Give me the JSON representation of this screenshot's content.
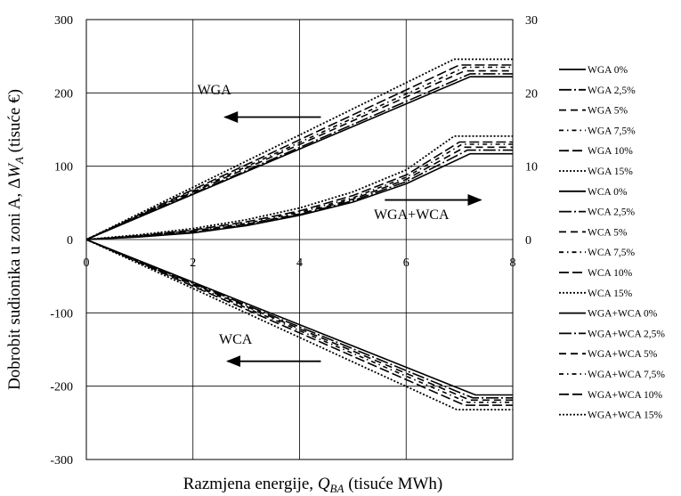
{
  "chart_data": {
    "type": "line",
    "title": "",
    "xlabel": "Razmjena energije, Q_BA (tisuće MWh)",
    "xlabel_parts": {
      "pre": "Razmjena energije, ",
      "sym": "Q",
      "sub": "BA",
      "post": " (tisuće MWh)"
    },
    "ylabel": "Dobrobit sudionika u zoni A, ΔW_A (tisuće €)",
    "ylabel_parts": {
      "pre": "Dobrobit sudionika u zoni A, Δ",
      "sym": "W",
      "sub": "A",
      "post": " (tisuće €)"
    },
    "xlim": [
      0,
      8
    ],
    "ylim": [
      -300,
      300
    ],
    "y2lim": [
      0,
      30
    ],
    "x_ticks": [
      "0",
      "2",
      "4",
      "6",
      "8"
    ],
    "y_ticks": [
      "300",
      "200",
      "100",
      "0",
      "-100",
      "-200",
      "-300"
    ],
    "y2_ticks": [
      "30",
      "20",
      "10",
      "0"
    ],
    "grid": true,
    "legend_position": "right",
    "annotations": [
      {
        "text": "WGA",
        "x": 2.4,
        "y": 198,
        "arrow": "left",
        "arrow_from": 4.4,
        "arrow_to": 2.6,
        "arrow_y": 167
      },
      {
        "text": "WGA+WCA",
        "x": 6.1,
        "y": 28,
        "arrow": "right",
        "arrow_from": 5.6,
        "arrow_to": 7.4,
        "arrow_y": 54
      },
      {
        "text": "WCA",
        "x": 2.8,
        "y": -142,
        "arrow": "left",
        "arrow_from": 4.4,
        "arrow_to": 2.65,
        "arrow_y": -166
      }
    ],
    "series": [
      {
        "name": "WGA 0%",
        "style": "solid",
        "axis": "left",
        "x": [
          0,
          7.2,
          8
        ],
        "y": [
          0,
          222,
          222
        ]
      },
      {
        "name": "WGA 2,5%",
        "style": "longdashdot",
        "axis": "left",
        "x": [
          0,
          7.2,
          8
        ],
        "y": [
          0,
          226,
          226
        ]
      },
      {
        "name": "WGA 5%",
        "style": "dash",
        "axis": "left",
        "x": [
          0,
          7.1,
          8
        ],
        "y": [
          0,
          230,
          230
        ]
      },
      {
        "name": "WGA 7,5%",
        "style": "dashdot",
        "axis": "left",
        "x": [
          0,
          7.1,
          8
        ],
        "y": [
          0,
          235,
          235
        ]
      },
      {
        "name": "WGA 10%",
        "style": "longdash",
        "axis": "left",
        "x": [
          0,
          7.0,
          8
        ],
        "y": [
          0,
          238,
          238
        ]
      },
      {
        "name": "WGA 15%",
        "style": "dot",
        "axis": "left",
        "x": [
          0,
          6.9,
          8
        ],
        "y": [
          0,
          246,
          246
        ]
      },
      {
        "name": "WCA 0%",
        "style": "solid",
        "axis": "left",
        "x": [
          0,
          7.3,
          8
        ],
        "y": [
          0,
          -212,
          -212
        ]
      },
      {
        "name": "WCA 2,5%",
        "style": "longdashdot",
        "axis": "left",
        "x": [
          0,
          7.25,
          8
        ],
        "y": [
          0,
          -216,
          -216
        ]
      },
      {
        "name": "WCA 5%",
        "style": "dash",
        "axis": "left",
        "x": [
          0,
          7.2,
          8
        ],
        "y": [
          0,
          -219,
          -219
        ]
      },
      {
        "name": "WCA 7,5%",
        "style": "dashdot",
        "axis": "left",
        "x": [
          0,
          7.15,
          8
        ],
        "y": [
          0,
          -222,
          -222
        ]
      },
      {
        "name": "WCA 10%",
        "style": "longdash",
        "axis": "left",
        "x": [
          0,
          7.1,
          8
        ],
        "y": [
          0,
          -226,
          -226
        ]
      },
      {
        "name": "WCA 15%",
        "style": "dot",
        "axis": "left",
        "x": [
          0,
          6.95,
          8
        ],
        "y": [
          0,
          -232,
          -232
        ]
      },
      {
        "name": "WGA+WCA 0%",
        "style": "solid",
        "axis": "right",
        "x": [
          0,
          1,
          2,
          3,
          4,
          5,
          6,
          7.2,
          8
        ],
        "y": [
          0,
          0.35,
          0.9,
          1.9,
          3.3,
          5.1,
          7.6,
          11.7,
          11.7
        ]
      },
      {
        "name": "WGA+WCA 2,5%",
        "style": "longdashdot",
        "axis": "right",
        "x": [
          0,
          1,
          2,
          3,
          4,
          5,
          6,
          7.15,
          8
        ],
        "y": [
          0,
          0.4,
          1.0,
          2.0,
          3.4,
          5.3,
          7.9,
          12.2,
          12.2
        ]
      },
      {
        "name": "WGA+WCA 5%",
        "style": "dash",
        "axis": "right",
        "x": [
          0,
          1,
          2,
          3,
          4,
          5,
          6,
          7.1,
          8
        ],
        "y": [
          0,
          0.45,
          1.1,
          2.1,
          3.5,
          5.5,
          8.2,
          12.6,
          12.6
        ]
      },
      {
        "name": "WGA+WCA 7,5%",
        "style": "dashdot",
        "axis": "right",
        "x": [
          0,
          1,
          2,
          3,
          4,
          5,
          6,
          7.05,
          8
        ],
        "y": [
          0,
          0.5,
          1.2,
          2.2,
          3.7,
          5.7,
          8.5,
          13.0,
          13.0
        ]
      },
      {
        "name": "WGA+WCA 10%",
        "style": "longdash",
        "axis": "right",
        "x": [
          0,
          1,
          2,
          3,
          4,
          5,
          6,
          7.0,
          8
        ],
        "y": [
          0,
          0.55,
          1.3,
          2.4,
          3.9,
          6.0,
          8.8,
          13.3,
          13.3
        ]
      },
      {
        "name": "WGA+WCA 15%",
        "style": "dot",
        "axis": "right",
        "x": [
          0,
          1,
          2,
          3,
          4,
          5,
          6,
          6.9,
          8
        ],
        "y": [
          0,
          0.65,
          1.5,
          2.7,
          4.3,
          6.5,
          9.5,
          14.1,
          14.1
        ]
      }
    ]
  }
}
